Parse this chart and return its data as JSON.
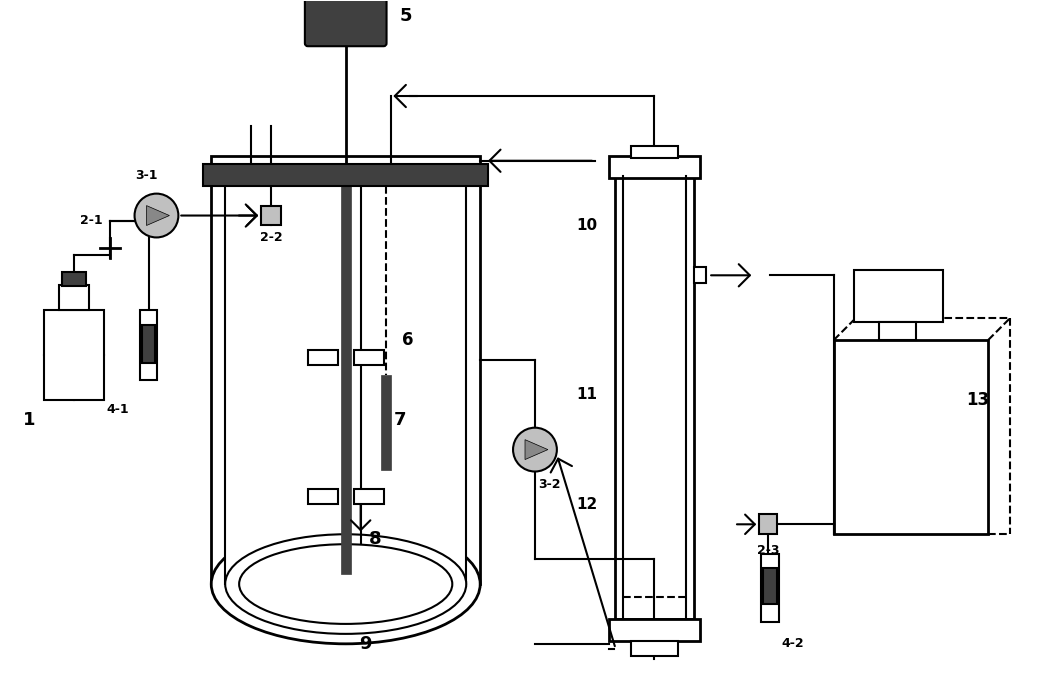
{
  "bg_color": "#ffffff",
  "line_color": "#000000",
  "dark_gray": "#404040",
  "mid_gray": "#888888",
  "light_gray": "#c0c0c0",
  "figsize": [
    10.5,
    7.0
  ],
  "dpi": 100
}
